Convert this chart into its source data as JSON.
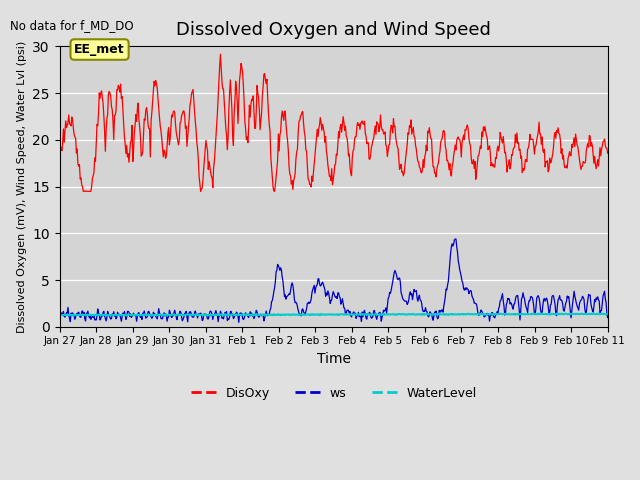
{
  "title": "Dissolved Oxygen and Wind Speed",
  "no_data_text": "No data for f_MD_DO",
  "annotation_text": "EE_met",
  "xlabel": "Time",
  "ylabel": "Dissolved Oxygen (mV), Wind Speed, Water Lvl (psi)",
  "ylim": [
    0,
    30
  ],
  "yticks": [
    0,
    5,
    10,
    15,
    20,
    25,
    30
  ],
  "fig_bg_color": "#e0e0e0",
  "plot_bg_color": "#d4d4d4",
  "disoxy_color": "#ff0000",
  "ws_color": "#0000cc",
  "waterlevel_color": "#00cccc",
  "grid_color": "#ffffff",
  "legend_labels": [
    "DisOxy",
    "ws",
    "WaterLevel"
  ],
  "x_tick_labels": [
    "Jan 27",
    "Jan 28",
    "Jan 29",
    "Jan 30",
    "Jan 31",
    "Feb 1",
    "Feb 2",
    "Feb 3",
    "Feb 4",
    "Feb 5",
    "Feb 6",
    "Feb 7",
    "Feb 8",
    "Feb 9",
    "Feb 10",
    "Feb 11"
  ],
  "n_days": 15,
  "pts_per_day": 48
}
